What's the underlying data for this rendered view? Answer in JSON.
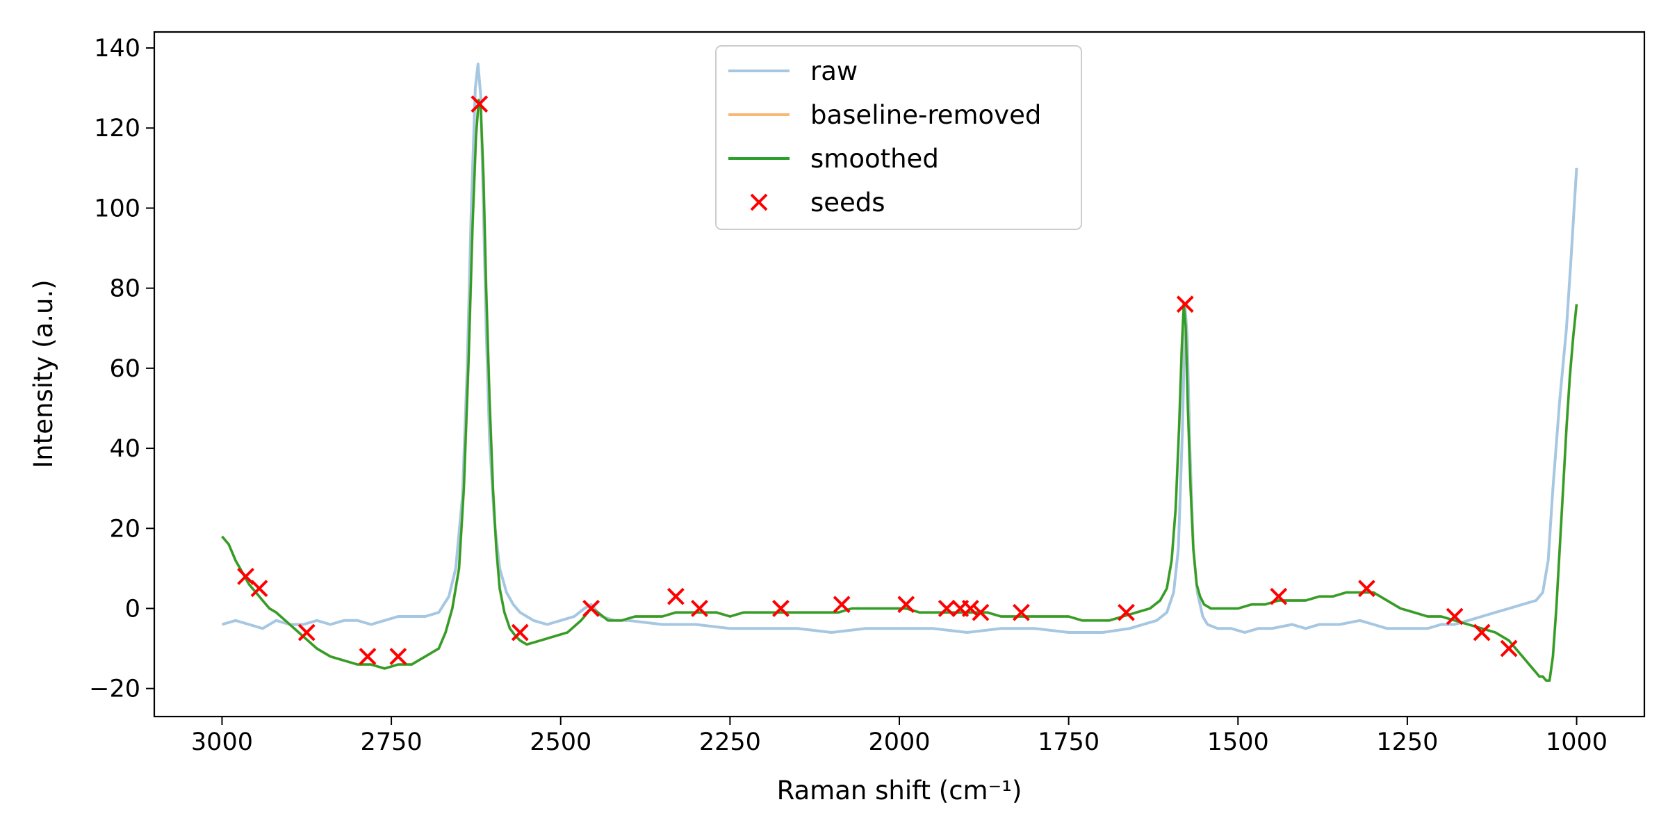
{
  "chart_data": {
    "type": "line",
    "title": "",
    "xlabel": "Raman shift (cm⁻¹)",
    "ylabel": "Intensity (a.u.)",
    "xlim": [
      3100,
      900
    ],
    "x_reversed": true,
    "ylim": [
      -27,
      144
    ],
    "x_ticks": [
      3000,
      2750,
      2500,
      2250,
      2000,
      1750,
      1500,
      1250,
      1000
    ],
    "y_ticks": [
      -20,
      0,
      20,
      40,
      60,
      80,
      100,
      120,
      140
    ],
    "x_tick_labels": [
      "3000",
      "2750",
      "2500",
      "2250",
      "2000",
      "1750",
      "1500",
      "1250",
      "1000"
    ],
    "y_tick_labels": [
      "−20",
      "0",
      "20",
      "40",
      "60",
      "80",
      "100",
      "120",
      "140"
    ],
    "grid": false,
    "legend_position": "top-center",
    "series": [
      {
        "name": "raw",
        "color": "#a6c7e2",
        "kind": "line",
        "x": [
          3000,
          2980,
          2960,
          2940,
          2920,
          2900,
          2880,
          2860,
          2840,
          2820,
          2800,
          2780,
          2760,
          2740,
          2720,
          2700,
          2680,
          2665,
          2655,
          2645,
          2638,
          2632,
          2626,
          2622,
          2618,
          2614,
          2610,
          2605,
          2598,
          2590,
          2580,
          2570,
          2560,
          2540,
          2520,
          2500,
          2480,
          2465,
          2455,
          2440,
          2420,
          2400,
          2350,
          2300,
          2250,
          2200,
          2150,
          2100,
          2050,
          2000,
          1950,
          1900,
          1850,
          1800,
          1750,
          1700,
          1660,
          1640,
          1620,
          1605,
          1595,
          1588,
          1582,
          1578,
          1575,
          1571,
          1566,
          1560,
          1552,
          1545,
          1530,
          1510,
          1490,
          1470,
          1450,
          1420,
          1400,
          1380,
          1350,
          1320,
          1300,
          1280,
          1250,
          1220,
          1200,
          1180,
          1160,
          1140,
          1120,
          1100,
          1080,
          1060,
          1050,
          1042,
          1035,
          1025,
          1015,
          1008,
          1003,
          1000
        ],
        "y": [
          -4,
          -3,
          -4,
          -5,
          -3,
          -4,
          -4,
          -3,
          -4,
          -3,
          -3,
          -4,
          -3,
          -2,
          -2,
          -2,
          -1,
          3,
          10,
          28,
          60,
          100,
          130,
          136,
          128,
          100,
          70,
          42,
          22,
          10,
          4,
          1,
          -1,
          -3,
          -4,
          -3,
          -2,
          0,
          1,
          -2,
          -3,
          -3,
          -4,
          -4,
          -5,
          -5,
          -5,
          -6,
          -5,
          -5,
          -5,
          -6,
          -5,
          -5,
          -6,
          -6,
          -5,
          -4,
          -3,
          -1,
          4,
          15,
          45,
          75,
          68,
          40,
          15,
          4,
          -2,
          -4,
          -5,
          -5,
          -6,
          -5,
          -5,
          -4,
          -5,
          -4,
          -4,
          -3,
          -4,
          -5,
          -5,
          -5,
          -4,
          -4,
          -3,
          -2,
          -1,
          0,
          1,
          2,
          4,
          12,
          30,
          52,
          70,
          88,
          102,
          110
        ]
      },
      {
        "name": "baseline-removed",
        "color": "#f7b97a",
        "kind": "line",
        "x": [
          3000,
          2990,
          2980,
          2970,
          2960,
          2950,
          2940,
          2930,
          2920,
          2900,
          2880,
          2860,
          2840,
          2820,
          2800,
          2780,
          2760,
          2740,
          2720,
          2700,
          2690,
          2680,
          2670,
          2660,
          2650,
          2643,
          2636,
          2630,
          2625,
          2621,
          2618,
          2614,
          2610,
          2605,
          2600,
          2595,
          2590,
          2583,
          2575,
          2566,
          2560,
          2550,
          2530,
          2510,
          2490,
          2470,
          2455,
          2445,
          2430,
          2410,
          2390,
          2370,
          2350,
          2330,
          2310,
          2290,
          2270,
          2250,
          2230,
          2210,
          2190,
          2170,
          2150,
          2130,
          2110,
          2090,
          2070,
          2050,
          2030,
          2010,
          1990,
          1970,
          1950,
          1930,
          1910,
          1890,
          1870,
          1850,
          1830,
          1810,
          1790,
          1770,
          1750,
          1730,
          1710,
          1690,
          1670,
          1650,
          1630,
          1615,
          1605,
          1598,
          1592,
          1587,
          1583,
          1580,
          1577,
          1574,
          1570,
          1566,
          1561,
          1556,
          1550,
          1540,
          1520,
          1500,
          1480,
          1460,
          1440,
          1420,
          1400,
          1380,
          1360,
          1340,
          1320,
          1300,
          1280,
          1260,
          1240,
          1220,
          1200,
          1180,
          1160,
          1140,
          1120,
          1100,
          1090,
          1080,
          1070,
          1060,
          1055,
          1050,
          1045,
          1040,
          1035,
          1030,
          1025,
          1020,
          1015,
          1010,
          1005,
          1000
        ],
        "y": [
          18,
          16,
          12,
          9,
          6,
          4,
          2,
          0,
          -1,
          -4,
          -7,
          -10,
          -12,
          -13,
          -14,
          -14,
          -15,
          -14,
          -14,
          -12,
          -11,
          -10,
          -6,
          0,
          10,
          30,
          62,
          96,
          118,
          127,
          125,
          108,
          80,
          52,
          30,
          15,
          5,
          -1,
          -5,
          -7,
          -8,
          -9,
          -8,
          -7,
          -6,
          -3,
          0,
          -1,
          -3,
          -3,
          -2,
          -2,
          -2,
          -1,
          -1,
          -1,
          -1,
          -2,
          -1,
          -1,
          -1,
          -1,
          -1,
          -1,
          -1,
          -1,
          0,
          0,
          0,
          0,
          0,
          -1,
          -1,
          -1,
          -1,
          -1,
          -1,
          -2,
          -2,
          -2,
          -2,
          -2,
          -2,
          -3,
          -3,
          -3,
          -2,
          -1,
          0,
          2,
          5,
          12,
          25,
          45,
          65,
          76,
          70,
          50,
          30,
          15,
          6,
          3,
          1,
          0,
          0,
          0,
          1,
          1,
          2,
          2,
          2,
          3,
          3,
          4,
          4,
          4,
          2,
          0,
          -1,
          -2,
          -2,
          -3,
          -4,
          -5,
          -6,
          -8,
          -10,
          -12,
          -14,
          -16,
          -17,
          -17,
          -18,
          -18,
          -12,
          0,
          15,
          30,
          45,
          58,
          68,
          76
        ]
      },
      {
        "name": "smoothed",
        "color": "#2ca02c",
        "kind": "line",
        "x": [
          3000,
          2990,
          2980,
          2970,
          2960,
          2950,
          2940,
          2930,
          2920,
          2900,
          2880,
          2860,
          2840,
          2820,
          2800,
          2780,
          2760,
          2740,
          2720,
          2700,
          2690,
          2680,
          2670,
          2660,
          2650,
          2643,
          2636,
          2630,
          2625,
          2621,
          2618,
          2614,
          2610,
          2605,
          2600,
          2595,
          2590,
          2583,
          2575,
          2566,
          2560,
          2550,
          2530,
          2510,
          2490,
          2470,
          2455,
          2445,
          2430,
          2410,
          2390,
          2370,
          2350,
          2330,
          2310,
          2290,
          2270,
          2250,
          2230,
          2210,
          2190,
          2170,
          2150,
          2130,
          2110,
          2090,
          2070,
          2050,
          2030,
          2010,
          1990,
          1970,
          1950,
          1930,
          1910,
          1890,
          1870,
          1850,
          1830,
          1810,
          1790,
          1770,
          1750,
          1730,
          1710,
          1690,
          1670,
          1650,
          1630,
          1615,
          1605,
          1598,
          1592,
          1587,
          1583,
          1580,
          1577,
          1574,
          1570,
          1566,
          1561,
          1556,
          1550,
          1540,
          1520,
          1500,
          1480,
          1460,
          1440,
          1420,
          1400,
          1380,
          1360,
          1340,
          1320,
          1300,
          1280,
          1260,
          1240,
          1220,
          1200,
          1180,
          1160,
          1140,
          1120,
          1100,
          1090,
          1080,
          1070,
          1060,
          1055,
          1050,
          1045,
          1040,
          1035,
          1030,
          1025,
          1020,
          1015,
          1010,
          1005,
          1000
        ],
        "y": [
          18,
          16,
          12,
          9,
          6,
          4,
          2,
          0,
          -1,
          -4,
          -7,
          -10,
          -12,
          -13,
          -14,
          -14,
          -15,
          -14,
          -14,
          -12,
          -11,
          -10,
          -6,
          0,
          10,
          30,
          62,
          96,
          118,
          127,
          125,
          108,
          80,
          52,
          30,
          15,
          5,
          -1,
          -5,
          -7,
          -8,
          -9,
          -8,
          -7,
          -6,
          -3,
          0,
          -1,
          -3,
          -3,
          -2,
          -2,
          -2,
          -1,
          -1,
          -1,
          -1,
          -2,
          -1,
          -1,
          -1,
          -1,
          -1,
          -1,
          -1,
          -1,
          0,
          0,
          0,
          0,
          0,
          -1,
          -1,
          -1,
          -1,
          -1,
          -1,
          -2,
          -2,
          -2,
          -2,
          -2,
          -2,
          -3,
          -3,
          -3,
          -2,
          -1,
          0,
          2,
          5,
          12,
          25,
          45,
          65,
          76,
          70,
          50,
          30,
          15,
          6,
          3,
          1,
          0,
          0,
          0,
          1,
          1,
          2,
          2,
          2,
          3,
          3,
          4,
          4,
          4,
          2,
          0,
          -1,
          -2,
          -2,
          -3,
          -4,
          -5,
          -6,
          -8,
          -10,
          -12,
          -14,
          -16,
          -17,
          -17,
          -18,
          -18,
          -12,
          0,
          15,
          30,
          45,
          58,
          68,
          76
        ]
      },
      {
        "name": "seeds",
        "color": "#ff0000",
        "kind": "scatter",
        "marker": "x",
        "x": [
          2965,
          2945,
          2875,
          2785,
          2740,
          2620,
          2560,
          2455,
          2330,
          2295,
          2175,
          2085,
          1990,
          1930,
          1910,
          1895,
          1880,
          1820,
          1665,
          1578,
          1440,
          1310,
          1180,
          1140,
          1100
        ],
        "y": [
          8,
          5,
          -6,
          -12,
          -12,
          126,
          -6,
          0,
          3,
          0,
          0,
          1,
          1,
          0,
          0,
          0,
          -1,
          -1,
          -1,
          76,
          3,
          5,
          -2,
          -6,
          -10
        ]
      }
    ]
  }
}
